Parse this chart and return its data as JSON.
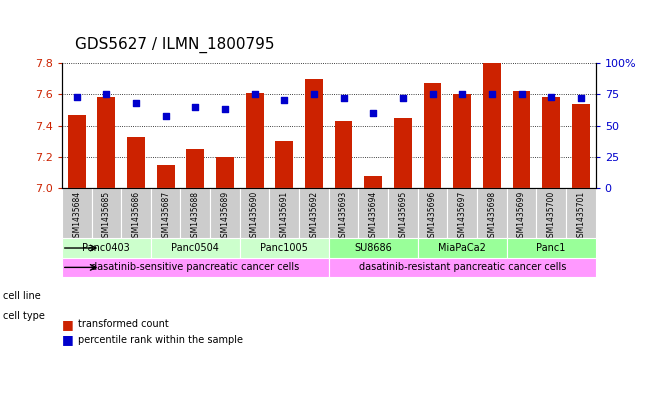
{
  "title": "GDS5627 / ILMN_1800795",
  "samples": [
    "GSM1435684",
    "GSM1435685",
    "GSM1435686",
    "GSM1435687",
    "GSM1435688",
    "GSM1435689",
    "GSM1435690",
    "GSM1435691",
    "GSM1435692",
    "GSM1435693",
    "GSM1435694",
    "GSM1435695",
    "GSM1435696",
    "GSM1435697",
    "GSM1435698",
    "GSM1435699",
    "GSM1435700",
    "GSM1435701"
  ],
  "bar_values": [
    7.47,
    7.58,
    7.33,
    7.15,
    7.25,
    7.2,
    7.61,
    7.3,
    7.7,
    7.43,
    7.08,
    7.45,
    7.67,
    7.6,
    7.8,
    7.62,
    7.58,
    7.54
  ],
  "dot_values": [
    73,
    75,
    68,
    58,
    65,
    63,
    75,
    70,
    75,
    72,
    60,
    72,
    75,
    75,
    75,
    75,
    73,
    72
  ],
  "ylim_left": [
    7.0,
    7.8
  ],
  "ylim_right": [
    0,
    100
  ],
  "yticks_left": [
    7.0,
    7.2,
    7.4,
    7.6,
    7.8
  ],
  "yticks_right": [
    0,
    25,
    50,
    75,
    100
  ],
  "ytick_labels_right": [
    "0",
    "25",
    "50",
    "75",
    "100%"
  ],
  "bar_color": "#cc2200",
  "dot_color": "#0000cc",
  "bar_bottom": 7.0,
  "cell_lines": [
    {
      "label": "Panc0403",
      "start": 0,
      "end": 2,
      "color": "#ccffcc"
    },
    {
      "label": "Panc0504",
      "start": 3,
      "end": 5,
      "color": "#ccffcc"
    },
    {
      "label": "Panc1005",
      "start": 6,
      "end": 8,
      "color": "#ccffcc"
    },
    {
      "label": "SU8686",
      "start": 9,
      "end": 11,
      "color": "#99ff99"
    },
    {
      "label": "MiaPaCa2",
      "start": 12,
      "end": 14,
      "color": "#99ff99"
    },
    {
      "label": "Panc1",
      "start": 15,
      "end": 17,
      "color": "#99ff99"
    }
  ],
  "cell_types": [
    {
      "label": "dasatinib-sensitive pancreatic cancer cells",
      "start": 0,
      "end": 8,
      "color": "#ff99ff"
    },
    {
      "label": "dasatinib-resistant pancreatic cancer cells",
      "start": 9,
      "end": 17,
      "color": "#ff99ff"
    }
  ],
  "legend_items": [
    {
      "label": "transformed count",
      "color": "#cc2200"
    },
    {
      "label": "percentile rank within the sample",
      "color": "#0000cc"
    }
  ],
  "cell_line_label": "cell line",
  "cell_type_label": "cell type",
  "bg_color": "#ffffff",
  "plot_bg_color": "#ffffff",
  "tick_label_color_left": "#cc2200",
  "tick_label_color_right": "#0000cc",
  "title_fontsize": 11,
  "tick_fontsize": 8,
  "bar_width": 0.6,
  "sample_box_color": "#cccccc"
}
